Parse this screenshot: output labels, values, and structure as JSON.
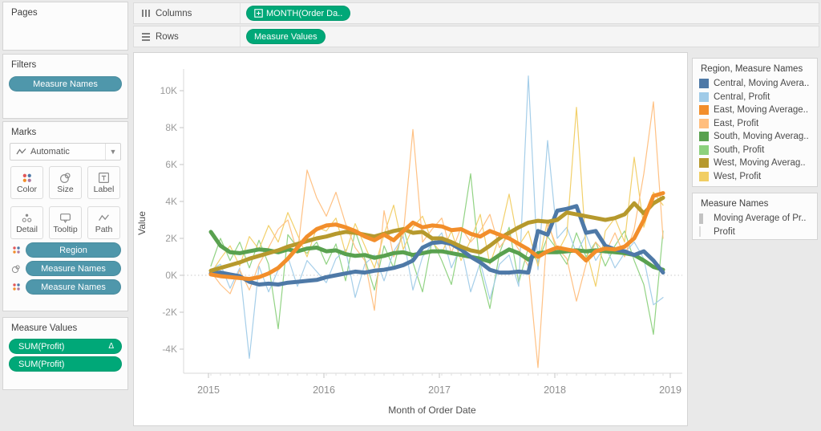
{
  "shelves": {
    "columns_label": "Columns",
    "rows_label": "Rows",
    "columns_pill": "MONTH(Order Da..",
    "rows_pill": "Measure Values"
  },
  "cards": {
    "pages": {
      "title": "Pages"
    },
    "filters": {
      "title": "Filters",
      "pills": [
        {
          "label": "Measure Names"
        }
      ]
    },
    "marks": {
      "title": "Marks",
      "mark_type": "Automatic",
      "buttons": [
        {
          "label": "Color"
        },
        {
          "label": "Size"
        },
        {
          "label": "Label"
        },
        {
          "label": "Detail"
        },
        {
          "label": "Tooltip"
        },
        {
          "label": "Path"
        }
      ],
      "pills": [
        {
          "label": "Region",
          "icon": "color-dots"
        },
        {
          "label": "Measure Names",
          "icon": "size-circles"
        },
        {
          "label": "Measure Names",
          "icon": "color-dots"
        }
      ]
    },
    "measure_values": {
      "title": "Measure Values",
      "pills": [
        {
          "label": "SUM(Profit)",
          "badge": "Δ"
        },
        {
          "label": "SUM(Profit)",
          "badge": ""
        }
      ]
    }
  },
  "legends": [
    {
      "title": "Region, Measure Names",
      "type": "color",
      "items": [
        {
          "label": "Central, Moving Avera..",
          "color": "#4e79a7"
        },
        {
          "label": "Central, Profit",
          "color": "#a0cbe8"
        },
        {
          "label": "East, Moving Average..",
          "color": "#f28e2b"
        },
        {
          "label": "East, Profit",
          "color": "#ffbe7d"
        },
        {
          "label": "South, Moving Averag..",
          "color": "#59a14f"
        },
        {
          "label": "South, Profit",
          "color": "#8cd17d"
        },
        {
          "label": "West, Moving Averag..",
          "color": "#b6992d"
        },
        {
          "label": "West, Profit",
          "color": "#f1ce63"
        }
      ]
    },
    {
      "title": "Measure Names",
      "type": "size",
      "items": [
        {
          "label": "Moving Average of Pr..",
          "size": "thick"
        },
        {
          "label": "Profit",
          "size": "thin"
        }
      ]
    }
  ],
  "chart_data": {
    "type": "line",
    "title": "",
    "xlabel": "Month of Order Date",
    "ylabel": "Value",
    "ylim": [
      -5.2,
      11
    ],
    "grid": "off",
    "legend_position": "right",
    "y_ticks": [
      10,
      8,
      6,
      4,
      2,
      0,
      -2,
      -4
    ],
    "y_tick_suffix": "K",
    "x_years": [
      "2015",
      "2016",
      "2017",
      "2018",
      "2019"
    ],
    "months": [
      "2015-01",
      "2015-02",
      "2015-03",
      "2015-04",
      "2015-05",
      "2015-06",
      "2015-07",
      "2015-08",
      "2015-09",
      "2015-10",
      "2015-11",
      "2015-12",
      "2016-01",
      "2016-02",
      "2016-03",
      "2016-04",
      "2016-05",
      "2016-06",
      "2016-07",
      "2016-08",
      "2016-09",
      "2016-10",
      "2016-11",
      "2016-12",
      "2017-01",
      "2017-02",
      "2017-03",
      "2017-04",
      "2017-05",
      "2017-06",
      "2017-07",
      "2017-08",
      "2017-09",
      "2017-10",
      "2017-11",
      "2017-12",
      "2018-01",
      "2018-02",
      "2018-03",
      "2018-04",
      "2018-05",
      "2018-06",
      "2018-07",
      "2018-08",
      "2018-09",
      "2018-10",
      "2018-11",
      "2018-12"
    ],
    "unit": "K (thousands of profit)",
    "series": [
      {
        "id": "south-profit",
        "name": "South, Profit",
        "color": "#8cd17d",
        "width": 1.2,
        "values": [
          0.5,
          2.0,
          0.8,
          1.8,
          0.4,
          1.9,
          0.6,
          -2.9,
          2.2,
          1.5,
          1.2,
          1.8,
          0.6,
          1.7,
          -0.3,
          2.4,
          0.9,
          -0.8,
          1.6,
          0.4,
          2.6,
          0.7,
          -0.9,
          1.9,
          0.8,
          -0.5,
          2.1,
          5.5,
          0.3,
          -1.8,
          1.2,
          2.6,
          -0.4,
          1.5,
          0.7,
          2.1,
          1.4,
          0.6,
          2.3,
          1.0,
          1.8,
          0.5,
          1.6,
          2.4,
          0.8,
          -0.5,
          -3.2,
          2.4
        ]
      },
      {
        "id": "central-profit",
        "name": "Central, Profit",
        "color": "#a0cbe8",
        "width": 1.2,
        "values": [
          0.3,
          0.6,
          -0.7,
          0.4,
          -4.5,
          0.5,
          -0.9,
          0.3,
          1.0,
          -0.6,
          0.8,
          0.2,
          -0.4,
          0.9,
          1.4,
          -1.2,
          0.6,
          1.1,
          -0.3,
          1.3,
          2.1,
          -0.8,
          1.0,
          1.7,
          2.3,
          0.4,
          1.6,
          -0.9,
          0.7,
          -1.3,
          0.6,
          1.1,
          -0.6,
          10.8,
          0.3,
          7.3,
          2.0,
          2.6,
          1.2,
          2.2,
          0.8,
          1.6,
          0.4,
          1.2,
          1.8,
          0.9,
          -1.6,
          -1.2
        ]
      },
      {
        "id": "west-profit",
        "name": "West, Profit",
        "color": "#f1ce63",
        "width": 1.2,
        "values": [
          0.1,
          0.9,
          1.6,
          0.5,
          2.1,
          1.4,
          2.7,
          1.8,
          3.4,
          2.2,
          1.0,
          2.6,
          2.4,
          3.1,
          1.2,
          2.8,
          1.6,
          0.4,
          2.2,
          3.8,
          1.4,
          2.6,
          3.2,
          1.8,
          1.2,
          2.4,
          0.8,
          1.9,
          3.3,
          0.6,
          2.1,
          4.4,
          1.6,
          2.4,
          0.5,
          3.0,
          1.2,
          2.2,
          9.1,
          1.4,
          -0.6,
          2.4,
          3.1,
          1.8,
          6.4,
          2.6,
          4.5,
          3.8
        ]
      },
      {
        "id": "east-profit",
        "name": "East, Profit",
        "color": "#ffbe7d",
        "width": 1.2,
        "values": [
          0.2,
          -0.5,
          -1.0,
          0.3,
          -0.8,
          0.6,
          1.5,
          2.5,
          3.0,
          1.2,
          5.7,
          4.2,
          3.2,
          4.5,
          2.8,
          1.5,
          0.8,
          -1.9,
          3.5,
          1.0,
          2.2,
          7.9,
          1.8,
          2.5,
          3.1,
          1.2,
          2.6,
          1.8,
          2.4,
          3.3,
          1.5,
          2.2,
          1.4,
          0.5,
          -5.0,
          2.8,
          1.5,
          0.9,
          -1.4,
          0.6,
          1.8,
          1.2,
          2.3,
          1.0,
          2.5,
          5.5,
          9.4,
          2.0
        ]
      },
      {
        "id": "south-moving-average",
        "name": "South, Moving Average of Profit",
        "color": "#59a14f",
        "width": 5,
        "values": [
          2.35,
          1.6,
          1.25,
          1.2,
          1.3,
          1.4,
          1.35,
          1.25,
          1.4,
          1.3,
          1.45,
          1.5,
          1.3,
          1.35,
          1.15,
          1.05,
          1.1,
          0.95,
          1.05,
          1.2,
          1.25,
          1.1,
          1.2,
          1.3,
          1.3,
          1.2,
          1.1,
          1.0,
          0.9,
          0.75,
          1.1,
          1.4,
          1.2,
          0.85,
          1.2,
          1.25,
          1.25,
          1.3,
          1.35,
          1.3,
          1.35,
          1.3,
          1.25,
          1.2,
          1.1,
          0.8,
          0.45,
          0.3
        ]
      },
      {
        "id": "central-moving-average",
        "name": "Central, Moving Average of Profit",
        "color": "#4e79a7",
        "width": 5,
        "values": [
          0.1,
          0.15,
          0.05,
          -0.05,
          -0.35,
          -0.5,
          -0.45,
          -0.5,
          -0.4,
          -0.35,
          -0.3,
          -0.25,
          -0.1,
          0.0,
          0.1,
          0.2,
          0.15,
          0.25,
          0.3,
          0.4,
          0.55,
          0.8,
          1.5,
          1.75,
          1.8,
          1.7,
          1.4,
          1.0,
          0.7,
          0.3,
          0.15,
          0.15,
          0.2,
          0.15,
          2.4,
          2.2,
          3.5,
          3.6,
          3.75,
          2.3,
          2.4,
          1.6,
          1.4,
          1.3,
          1.1,
          1.3,
          0.8,
          0.15
        ]
      },
      {
        "id": "west-moving-average",
        "name": "West, Moving Average of Profit",
        "color": "#b6992d",
        "width": 5,
        "values": [
          0.25,
          0.4,
          0.55,
          0.7,
          0.9,
          1.05,
          1.2,
          1.35,
          1.55,
          1.7,
          1.85,
          2.0,
          2.1,
          2.25,
          2.35,
          2.3,
          2.2,
          2.1,
          2.25,
          2.4,
          2.5,
          2.3,
          2.35,
          2.0,
          2.0,
          1.8,
          1.55,
          1.35,
          1.25,
          1.6,
          2.0,
          2.3,
          2.6,
          2.85,
          2.95,
          2.9,
          3.0,
          3.4,
          3.3,
          3.2,
          3.1,
          3.0,
          3.1,
          3.3,
          3.9,
          3.35,
          3.9,
          4.2
        ]
      },
      {
        "id": "east-moving-average",
        "name": "East, Moving Average of Profit",
        "color": "#f28e2b",
        "width": 5,
        "values": [
          0.05,
          -0.05,
          -0.1,
          -0.15,
          -0.2,
          -0.1,
          0.1,
          0.4,
          0.9,
          1.5,
          2.1,
          2.5,
          2.7,
          2.75,
          2.6,
          2.4,
          2.1,
          1.9,
          2.2,
          1.9,
          2.4,
          2.85,
          2.6,
          2.7,
          2.65,
          2.45,
          2.5,
          2.25,
          2.1,
          2.4,
          2.2,
          2.0,
          1.7,
          1.4,
          1.0,
          1.3,
          1.5,
          1.4,
          1.3,
          0.8,
          1.3,
          1.45,
          1.4,
          1.55,
          2.0,
          3.0,
          4.3,
          4.45
        ]
      }
    ]
  }
}
